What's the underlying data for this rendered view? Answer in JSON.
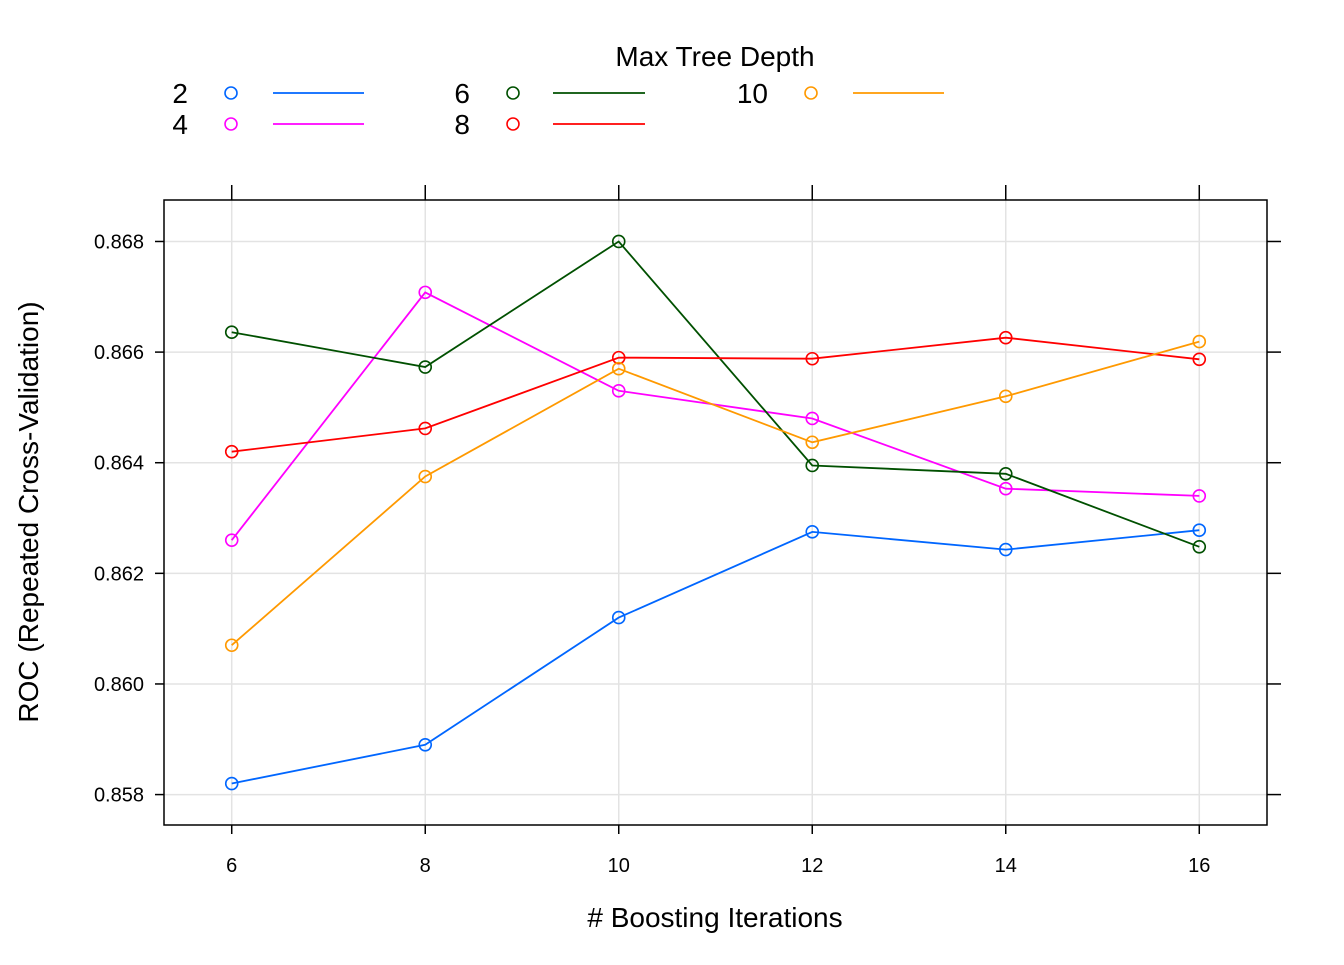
{
  "chart_data": {
    "type": "line",
    "title": "",
    "legend": {
      "title": "Max Tree Depth",
      "placement": "top"
    },
    "xlabel": "# Boosting Iterations",
    "ylabel": "ROC (Repeated Cross-Validation)",
    "x": [
      6,
      8,
      10,
      12,
      14,
      16
    ],
    "x_ticks": [
      "6",
      "8",
      "10",
      "12",
      "14",
      "16"
    ],
    "xlim": [
      5.3,
      16.7
    ],
    "y_ticks": [
      "0.858",
      "0.860",
      "0.862",
      "0.864",
      "0.866",
      "0.868"
    ],
    "ylim": [
      0.85745,
      0.86875
    ],
    "grid": true,
    "markers": "open-circle",
    "series": [
      {
        "name": "2",
        "color": "#0066ff",
        "values": [
          0.8582,
          0.8589,
          0.8612,
          0.86275,
          0.86243,
          0.86278
        ]
      },
      {
        "name": "4",
        "color": "#ff00ff",
        "values": [
          0.8626,
          0.86708,
          0.8653,
          0.8648,
          0.86353,
          0.8634
        ]
      },
      {
        "name": "6",
        "color": "#005000",
        "values": [
          0.86636,
          0.86573,
          0.868,
          0.86395,
          0.8638,
          0.86248
        ]
      },
      {
        "name": "8",
        "color": "#ff0000",
        "values": [
          0.8642,
          0.86462,
          0.8659,
          0.86588,
          0.86626,
          0.86587
        ]
      },
      {
        "name": "10",
        "color": "#ff9900",
        "values": [
          0.8607,
          0.86375,
          0.8657,
          0.86437,
          0.8652,
          0.86619
        ]
      }
    ]
  }
}
